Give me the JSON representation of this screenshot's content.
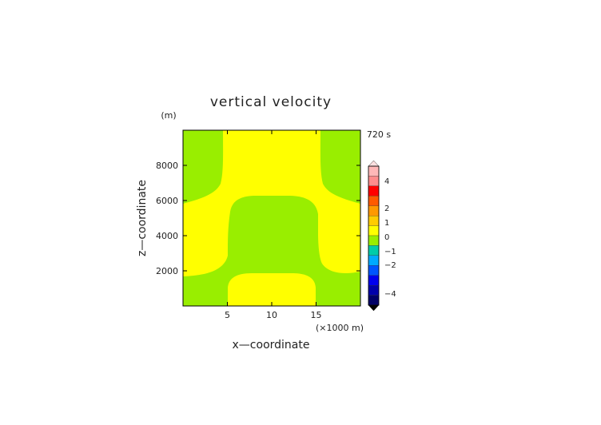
{
  "chart_data": {
    "type": "heatmap",
    "title": "vertical velocity",
    "time_label": "720 s",
    "xlabel": "x—coordinate",
    "ylabel": "z—coordinate",
    "x_unit": "(×1000 m)",
    "y_unit": "(m)",
    "xlim": [
      0,
      20
    ],
    "ylim": [
      0,
      10000
    ],
    "x_ticks": [
      5,
      10,
      15
    ],
    "y_ticks": [
      2000,
      4000,
      6000,
      8000
    ],
    "grid": false,
    "regions": [
      {
        "level": "0..0.5 (yellow)",
        "description": "upper central band x~4-15.5 above z~6200 and below z~1900 between x~5 and 15.5; side lobes left and right between z~1800 and 5800"
      },
      {
        "level": "-0.5..0 (green)",
        "description": "central column x~5-15.5 between z~1900 and 6200; corners top-left/top-right above z~6000 and bottom-left/bottom-right below z~1800"
      }
    ],
    "colorbar": {
      "labels": [
        "4",
        "2",
        "1",
        "0",
        "−1",
        "−2",
        "−4"
      ],
      "bins": [
        {
          "color": "#ffb8b8"
        },
        {
          "color": "#ff8c8c"
        },
        {
          "color": "#ff0000"
        },
        {
          "color": "#ff5a00"
        },
        {
          "color": "#ff9900"
        },
        {
          "color": "#ffcc00"
        },
        {
          "color": "#ffff00"
        },
        {
          "color": "#99ee00"
        },
        {
          "color": "#00ccaa"
        },
        {
          "color": "#00aaff"
        },
        {
          "color": "#0055ff"
        },
        {
          "color": "#0000ee"
        },
        {
          "color": "#0000aa"
        },
        {
          "color": "#000066"
        }
      ]
    },
    "colors": {
      "positive_small": "#ffff00",
      "negative_small": "#99ee00"
    }
  }
}
